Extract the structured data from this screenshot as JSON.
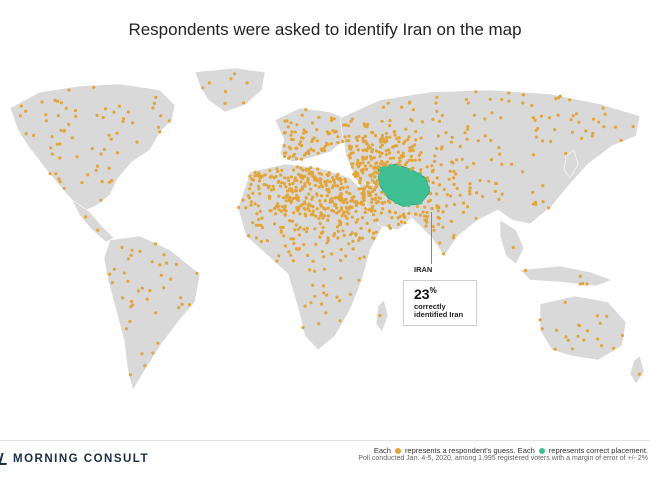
{
  "title": "Respondents were asked to identify Iran on the map",
  "callout": {
    "label": "IRAN",
    "percent": "23",
    "percent_sign": "%",
    "line1": "correctly",
    "line2": "identified Iran"
  },
  "legend": {
    "each": "Each",
    "guess_text": "represents a respondent's guess. Each",
    "correct_text": "represents correct placement."
  },
  "footer": {
    "logo": "MORNING CONSULT",
    "poll": "Poll conducted Jan. 4-5, 2020, among 1,995 registered voters with a margin of error of +/- 2%"
  },
  "colors": {
    "land": "#d9d9d9",
    "guess_dot": "#e3a53a",
    "correct_dot": "#3fbf93",
    "iran_fill": "#3fbf93"
  }
}
